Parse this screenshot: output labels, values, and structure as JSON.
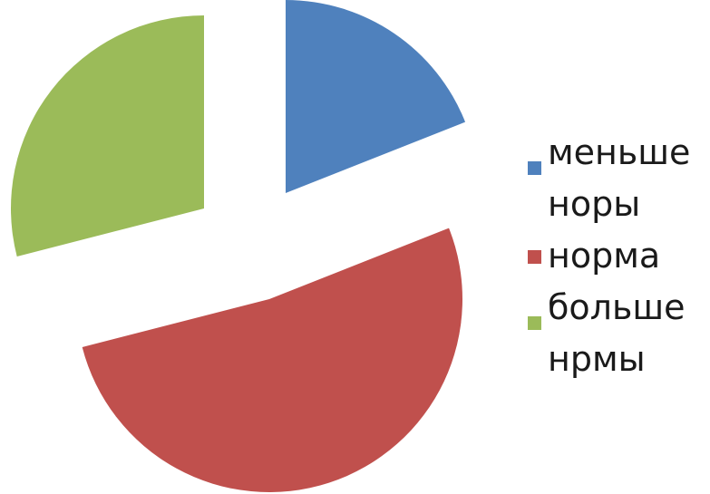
{
  "chart_data": {
    "type": "pie",
    "title": "",
    "legend_position": "right",
    "start_angle_deg": 0,
    "exploded": true,
    "slices": [
      {
        "label": "меньше норы",
        "legend_lines": [
          "меньше",
          "норы"
        ],
        "value": 19,
        "color": "#4F81BD"
      },
      {
        "label": "норма",
        "legend_lines": [
          "норма"
        ],
        "value": 52,
        "color": "#C0504D"
      },
      {
        "label": "больше нрмы",
        "legend_lines": [
          "больше",
          "нрмы"
        ],
        "value": 29,
        "color": "#9BBB59"
      }
    ]
  }
}
